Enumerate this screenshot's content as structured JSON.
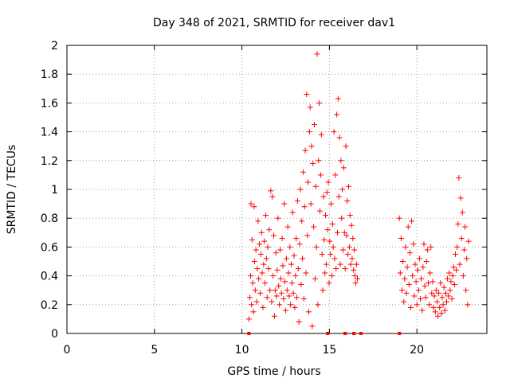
{
  "chart_data": {
    "type": "scatter",
    "title": "Day 348 of 2021, SRMTID for receiver dav1",
    "xlabel": "GPS time / hours",
    "ylabel": "SRMTID / TECUs",
    "xlim": [
      0,
      24
    ],
    "ylim": [
      0,
      2
    ],
    "x_ticks": [
      "0",
      "5",
      "10",
      "15",
      "20"
    ],
    "y_ticks": [
      "0",
      "0.2",
      "0.4",
      "0.6",
      "0.8",
      "1",
      "1.2",
      "1.4",
      "1.6",
      "1.8",
      "2"
    ],
    "grid": true,
    "marker": "plus",
    "color": "#ff0000",
    "series": [
      {
        "name": "dav1",
        "points": [
          [
            10.4,
            0.1
          ],
          [
            10.45,
            0.25
          ],
          [
            10.5,
            0.4
          ],
          [
            10.52,
            0.9
          ],
          [
            10.55,
            0.2
          ],
          [
            10.58,
            0.65
          ],
          [
            10.62,
            0.35
          ],
          [
            10.66,
            0.15
          ],
          [
            10.7,
            0.88
          ],
          [
            10.72,
            0.5
          ],
          [
            10.76,
            0.3
          ],
          [
            10.8,
            0.58
          ],
          [
            10.84,
            0.22
          ],
          [
            10.88,
            0.45
          ],
          [
            10.92,
            0.78
          ],
          [
            10.96,
            0.38
          ],
          [
            11.0,
            0.62
          ],
          [
            11.04,
            0.28
          ],
          [
            11.08,
            0.55
          ],
          [
            11.12,
            0.7
          ],
          [
            11.16,
            0.42
          ],
          [
            11.2,
            0.18
          ],
          [
            11.24,
            0.48
          ],
          [
            11.28,
            0.64
          ],
          [
            11.32,
            0.35
          ],
          [
            11.36,
            0.82
          ],
          [
            11.4,
            0.52
          ],
          [
            11.44,
            0.25
          ],
          [
            11.48,
            0.6
          ],
          [
            11.52,
            0.45
          ],
          [
            11.56,
            0.72
          ],
          [
            11.6,
            0.3
          ],
          [
            11.65,
            0.99
          ],
          [
            11.7,
            0.22
          ],
          [
            11.74,
            0.95
          ],
          [
            11.78,
            0.4
          ],
          [
            11.82,
            0.68
          ],
          [
            11.86,
            0.12
          ],
          [
            11.9,
            0.3
          ],
          [
            11.94,
            0.56
          ],
          [
            11.98,
            0.26
          ],
          [
            12.02,
            0.44
          ],
          [
            12.06,
            0.8
          ],
          [
            12.1,
            0.33
          ],
          [
            12.14,
            0.2
          ],
          [
            12.18,
            0.58
          ],
          [
            12.22,
            0.38
          ],
          [
            12.26,
            0.28
          ],
          [
            12.3,
            0.66
          ],
          [
            12.34,
            0.47
          ],
          [
            12.38,
            0.24
          ],
          [
            12.42,
            0.9
          ],
          [
            12.46,
            0.36
          ],
          [
            12.5,
            0.16
          ],
          [
            12.54,
            0.52
          ],
          [
            12.58,
            0.3
          ],
          [
            12.62,
            0.74
          ],
          [
            12.66,
            0.42
          ],
          [
            12.7,
            0.26
          ],
          [
            12.74,
            0.6
          ],
          [
            12.78,
            0.2
          ],
          [
            12.82,
            0.48
          ],
          [
            12.86,
            0.35
          ],
          [
            12.9,
            0.84
          ],
          [
            12.94,
            0.28
          ],
          [
            12.98,
            0.54
          ],
          [
            13.02,
            0.18
          ],
          [
            13.06,
            0.4
          ],
          [
            13.1,
            0.66
          ],
          [
            13.14,
            0.25
          ],
          [
            13.18,
            0.92
          ],
          [
            13.22,
            0.45
          ],
          [
            13.26,
            0.08
          ],
          [
            13.3,
            0.62
          ],
          [
            13.34,
            1.0
          ],
          [
            13.38,
            0.34
          ],
          [
            13.42,
            0.78
          ],
          [
            13.46,
            0.52
          ],
          [
            13.5,
            1.12
          ],
          [
            13.54,
            0.24
          ],
          [
            13.58,
            0.88
          ],
          [
            13.62,
            1.27
          ],
          [
            13.66,
            0.42
          ],
          [
            13.7,
            1.66
          ],
          [
            13.74,
            0.68
          ],
          [
            13.78,
            1.05
          ],
          [
            13.82,
            0.15
          ],
          [
            13.86,
            1.4
          ],
          [
            13.9,
            1.57
          ],
          [
            13.94,
            0.9
          ],
          [
            13.98,
            1.3
          ],
          [
            14.02,
            0.05
          ],
          [
            14.06,
            1.18
          ],
          [
            14.1,
            0.74
          ],
          [
            14.14,
            1.45
          ],
          [
            14.18,
            0.38
          ],
          [
            14.22,
            1.02
          ],
          [
            14.26,
            0.6
          ],
          [
            14.3,
            1.94
          ],
          [
            14.34,
            0.2
          ],
          [
            14.38,
            1.2
          ],
          [
            14.42,
            1.6
          ],
          [
            14.46,
            0.85
          ],
          [
            14.5,
            1.1
          ],
          [
            14.54,
            1.38
          ],
          [
            14.58,
            0.55
          ],
          [
            14.62,
            0.3
          ],
          [
            14.66,
            0.95
          ],
          [
            14.7,
            0.65
          ],
          [
            14.74,
            0.42
          ],
          [
            14.78,
            0.82
          ],
          [
            14.82,
            0.48
          ],
          [
            14.86,
            0.98
          ],
          [
            14.9,
            0.72
          ],
          [
            14.94,
            1.05
          ],
          [
            14.98,
            0.35
          ],
          [
            15.02,
            0.64
          ],
          [
            15.06,
            0.55
          ],
          [
            15.1,
            0.9
          ],
          [
            15.14,
            0.4
          ],
          [
            15.18,
            0.76
          ],
          [
            15.22,
            0.6
          ],
          [
            15.26,
            1.4
          ],
          [
            15.3,
            0.52
          ],
          [
            15.34,
            1.1
          ],
          [
            15.38,
            0.45
          ],
          [
            15.42,
            1.52
          ],
          [
            15.46,
            0.7
          ],
          [
            15.5,
            1.63
          ],
          [
            15.54,
            0.95
          ],
          [
            15.58,
            1.36
          ],
          [
            15.62,
            0.48
          ],
          [
            15.66,
            1.2
          ],
          [
            15.7,
            0.8
          ],
          [
            15.74,
            1.0
          ],
          [
            15.78,
            0.58
          ],
          [
            15.82,
            1.15
          ],
          [
            15.86,
            0.7
          ],
          [
            15.9,
            0.45
          ],
          [
            15.94,
            1.3
          ],
          [
            15.98,
            0.68
          ],
          [
            16.02,
            0.92
          ],
          [
            16.06,
            0.55
          ],
          [
            16.1,
            1.02
          ],
          [
            16.14,
            0.6
          ],
          [
            16.18,
            0.82
          ],
          [
            16.22,
            0.48
          ],
          [
            16.26,
            0.75
          ],
          [
            16.3,
            0.52
          ],
          [
            16.34,
            0.66
          ],
          [
            16.38,
            0.44
          ],
          [
            16.42,
            0.58
          ],
          [
            16.46,
            0.4
          ],
          [
            16.5,
            0.35
          ],
          [
            16.55,
            0.48
          ],
          [
            16.6,
            0.38
          ],
          [
            19.0,
            0.8
          ],
          [
            19.05,
            0.42
          ],
          [
            19.1,
            0.66
          ],
          [
            19.15,
            0.3
          ],
          [
            19.2,
            0.5
          ],
          [
            19.25,
            0.22
          ],
          [
            19.3,
            0.38
          ],
          [
            19.35,
            0.6
          ],
          [
            19.4,
            0.28
          ],
          [
            19.45,
            0.46
          ],
          [
            19.5,
            0.74
          ],
          [
            19.55,
            0.34
          ],
          [
            19.6,
            0.56
          ],
          [
            19.65,
            0.18
          ],
          [
            19.7,
            0.78
          ],
          [
            19.75,
            0.4
          ],
          [
            19.8,
            0.62
          ],
          [
            19.85,
            0.26
          ],
          [
            19.9,
            0.48
          ],
          [
            19.95,
            0.36
          ],
          [
            20.0,
            0.2
          ],
          [
            20.05,
            0.44
          ],
          [
            20.1,
            0.3
          ],
          [
            20.15,
            0.52
          ],
          [
            20.2,
            0.24
          ],
          [
            20.25,
            0.38
          ],
          [
            20.3,
            0.16
          ],
          [
            20.35,
            0.46
          ],
          [
            20.4,
            0.62
          ],
          [
            20.45,
            0.33
          ],
          [
            20.5,
            0.25
          ],
          [
            20.55,
            0.5
          ],
          [
            20.6,
            0.58
          ],
          [
            20.65,
            0.35
          ],
          [
            20.7,
            0.2
          ],
          [
            20.75,
            0.42
          ],
          [
            20.8,
            0.6
          ],
          [
            20.85,
            0.28
          ],
          [
            20.9,
            0.36
          ],
          [
            20.95,
            0.18
          ],
          [
            21.0,
            0.26
          ],
          [
            21.05,
            0.15
          ],
          [
            21.1,
            0.3
          ],
          [
            21.15,
            0.22
          ],
          [
            21.2,
            0.12
          ],
          [
            21.25,
            0.28
          ],
          [
            21.3,
            0.18
          ],
          [
            21.35,
            0.35
          ],
          [
            21.4,
            0.14
          ],
          [
            21.45,
            0.25
          ],
          [
            21.5,
            0.2
          ],
          [
            21.55,
            0.32
          ],
          [
            21.6,
            0.16
          ],
          [
            21.65,
            0.28
          ],
          [
            21.7,
            0.22
          ],
          [
            21.75,
            0.38
          ],
          [
            21.8,
            0.26
          ],
          [
            21.85,
            0.42
          ],
          [
            21.9,
            0.3
          ],
          [
            21.95,
            0.36
          ],
          [
            22.0,
            0.24
          ],
          [
            22.05,
            0.4
          ],
          [
            22.1,
            0.46
          ],
          [
            22.15,
            0.34
          ],
          [
            22.2,
            0.55
          ],
          [
            22.25,
            0.44
          ],
          [
            22.3,
            0.6
          ],
          [
            22.35,
            0.76
          ],
          [
            22.4,
            1.08
          ],
          [
            22.45,
            0.48
          ],
          [
            22.5,
            0.94
          ],
          [
            22.55,
            0.66
          ],
          [
            22.6,
            0.84
          ],
          [
            22.65,
            0.4
          ],
          [
            22.7,
            0.58
          ],
          [
            22.75,
            0.74
          ],
          [
            22.8,
            0.3
          ],
          [
            22.85,
            0.52
          ],
          [
            22.9,
            0.2
          ],
          [
            22.95,
            0.64
          ]
        ]
      }
    ],
    "zero_markers_x": [
      10.4,
      14.9,
      15.9,
      16.4,
      16.8,
      19.0
    ]
  }
}
